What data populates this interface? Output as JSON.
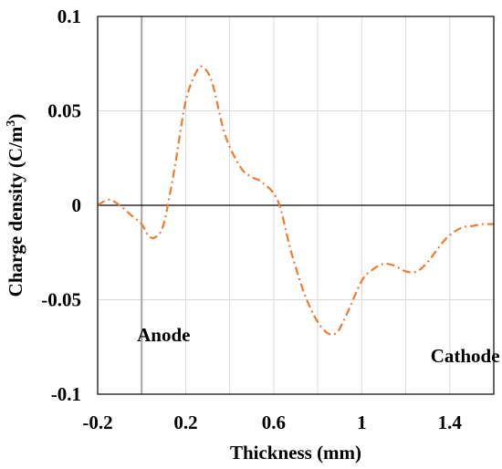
{
  "chart_data": {
    "type": "line",
    "title": "",
    "xlabel": "Thickness (mm)",
    "ylabel": "Charge density (C/m³)",
    "ylabel_main": "Charge density (C/m",
    "ylabel_sup": "3",
    "ylabel_end": ")",
    "xlim": [
      -0.2,
      1.6
    ],
    "ylim": [
      -0.1,
      0.1
    ],
    "x_ticks": [
      -0.2,
      0.2,
      0.6,
      1.0,
      1.4
    ],
    "x_tick_labels": [
      "-0.2",
      "0.2",
      "0.6",
      "1",
      "1.4"
    ],
    "x_minor_gridlines": [
      0.0,
      0.4,
      0.8,
      1.2,
      1.6
    ],
    "y_ticks": [
      -0.1,
      -0.05,
      0,
      0.05,
      0.1
    ],
    "y_tick_labels": [
      "-0.1",
      "-0.05",
      "0",
      "0.05",
      "0.1"
    ],
    "grid": true,
    "legend": "none",
    "reference_lines": {
      "horizontal_at_y": 0,
      "vertical_at_x": 0.0
    },
    "annotations": [
      {
        "text": "Anode",
        "x": 0.1,
        "y": -0.072
      },
      {
        "text": "Cathode",
        "x": 1.47,
        "y": -0.083
      }
    ],
    "series": [
      {
        "color": "#ed7d31",
        "line_style": "dash-dot",
        "x": [
          -0.2,
          -0.15,
          -0.1,
          -0.05,
          0.0,
          0.03,
          0.06,
          0.1,
          0.15,
          0.2,
          0.25,
          0.28,
          0.32,
          0.38,
          0.45,
          0.5,
          0.55,
          0.62,
          0.68,
          0.75,
          0.82,
          0.88,
          0.93,
          1.0,
          1.05,
          1.1,
          1.15,
          1.2,
          1.25,
          1.3,
          1.38,
          1.45,
          1.5,
          1.55,
          1.6
        ],
        "y": [
          0.0,
          0.003,
          0.0,
          -0.005,
          -0.01,
          -0.016,
          -0.017,
          -0.01,
          0.02,
          0.055,
          0.071,
          0.073,
          0.065,
          0.037,
          0.02,
          0.015,
          0.012,
          0.002,
          -0.025,
          -0.05,
          -0.065,
          -0.068,
          -0.058,
          -0.04,
          -0.034,
          -0.031,
          -0.032,
          -0.035,
          -0.035,
          -0.03,
          -0.018,
          -0.012,
          -0.011,
          -0.01,
          -0.01
        ]
      }
    ]
  }
}
